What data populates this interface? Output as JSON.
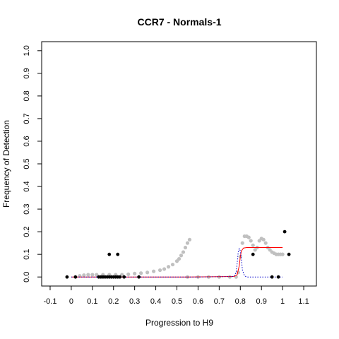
{
  "chart_data": {
    "type": "scatter",
    "title": "CCR7 - Normals-1",
    "xlabel": "Progression to H9",
    "ylabel": "Frequency of Detection",
    "xlim": [
      -0.14,
      1.16
    ],
    "ylim": [
      -0.04,
      1.04
    ],
    "x_ticks": [
      "-0.1",
      "0",
      "0.1",
      "0.2",
      "0.3",
      "0.4",
      "0.5",
      "0.6",
      "0.7",
      "0.8",
      "0.9",
      "1",
      "1.1"
    ],
    "x_tick_values": [
      -0.1,
      0,
      0.1,
      0.2,
      0.3,
      0.4,
      0.5,
      0.6,
      0.7,
      0.8,
      0.9,
      1.0,
      1.1
    ],
    "y_ticks": [
      "0.0",
      "0.1",
      "0.2",
      "0.3",
      "0.4",
      "0.5",
      "0.6",
      "0.7",
      "0.8",
      "0.9",
      "1.0"
    ],
    "y_tick_values": [
      0,
      0.1,
      0.2,
      0.3,
      0.4,
      0.5,
      0.6,
      0.7,
      0.8,
      0.9,
      1.0
    ],
    "grid": false,
    "colors": {
      "points": "#000000",
      "smooth_grey": "#c0c0c0",
      "fit_red": "#ff0000",
      "fit_blue": "#0000cc"
    },
    "series": [
      {
        "kind": "points",
        "points": [
          [
            -0.02,
            0
          ],
          [
            0.02,
            0
          ],
          [
            0.13,
            0
          ],
          [
            0.14,
            0
          ],
          [
            0.15,
            0
          ],
          [
            0.16,
            0
          ],
          [
            0.17,
            0
          ],
          [
            0.18,
            0
          ],
          [
            0.19,
            0
          ],
          [
            0.2,
            0
          ],
          [
            0.21,
            0
          ],
          [
            0.22,
            0
          ],
          [
            0.23,
            0
          ],
          [
            0.25,
            0
          ],
          [
            0.32,
            0
          ],
          [
            0.95,
            0
          ],
          [
            0.98,
            0
          ],
          [
            0.18,
            0.1
          ],
          [
            0.22,
            0.1
          ],
          [
            0.86,
            0.1
          ],
          [
            1.03,
            0.1
          ],
          [
            1.01,
            0.2
          ]
        ]
      },
      {
        "kind": "smooth",
        "points": [
          [
            0.04,
            0.005
          ],
          [
            0.06,
            0.008
          ],
          [
            0.08,
            0.01
          ],
          [
            0.1,
            0.01
          ],
          [
            0.12,
            0.01
          ],
          [
            0.15,
            0.01
          ],
          [
            0.18,
            0.01
          ],
          [
            0.21,
            0.01
          ],
          [
            0.24,
            0.01
          ],
          [
            0.27,
            0.012
          ],
          [
            0.3,
            0.015
          ],
          [
            0.33,
            0.017
          ],
          [
            0.36,
            0.02
          ],
          [
            0.39,
            0.025
          ],
          [
            0.42,
            0.03
          ],
          [
            0.44,
            0.035
          ],
          [
            0.46,
            0.045
          ],
          [
            0.48,
            0.055
          ],
          [
            0.5,
            0.07
          ],
          [
            0.51,
            0.08
          ],
          [
            0.52,
            0.095
          ],
          [
            0.53,
            0.11
          ],
          [
            0.54,
            0.13
          ],
          [
            0.55,
            0.15
          ],
          [
            0.56,
            0.165
          ],
          [
            0.55,
            0.0
          ],
          [
            0.6,
            0.0
          ],
          [
            0.65,
            0.0
          ],
          [
            0.7,
            0.0
          ],
          [
            0.75,
            0.0
          ],
          [
            0.78,
            0.0
          ],
          [
            0.79,
            0.02
          ],
          [
            0.8,
            0.09
          ],
          [
            0.81,
            0.15
          ],
          [
            0.82,
            0.18
          ],
          [
            0.83,
            0.18
          ],
          [
            0.84,
            0.175
          ],
          [
            0.85,
            0.16
          ],
          [
            0.86,
            0.14
          ],
          [
            0.87,
            0.12
          ],
          [
            0.88,
            0.13
          ],
          [
            0.89,
            0.16
          ],
          [
            0.9,
            0.17
          ],
          [
            0.91,
            0.165
          ],
          [
            0.92,
            0.15
          ],
          [
            0.93,
            0.13
          ],
          [
            0.94,
            0.12
          ],
          [
            0.95,
            0.11
          ],
          [
            0.96,
            0.105
          ],
          [
            0.97,
            0.1
          ],
          [
            0.98,
            0.1
          ],
          [
            0.99,
            0.1
          ],
          [
            1.0,
            0.1
          ]
        ]
      },
      {
        "kind": "fit",
        "style": "solid",
        "points": [
          [
            0.0,
            0.0
          ],
          [
            0.3,
            0.0
          ],
          [
            0.55,
            0.0
          ],
          [
            0.77,
            0.002
          ],
          [
            0.785,
            0.01
          ],
          [
            0.795,
            0.05
          ],
          [
            0.8,
            0.09
          ],
          [
            0.805,
            0.115
          ],
          [
            0.815,
            0.128
          ],
          [
            0.83,
            0.13
          ],
          [
            1.0,
            0.13
          ]
        ]
      },
      {
        "kind": "fit",
        "style": "dotted",
        "points": [
          [
            0.0,
            0.0
          ],
          [
            0.6,
            0.0
          ],
          [
            0.77,
            0.002
          ],
          [
            0.78,
            0.02
          ],
          [
            0.785,
            0.06
          ],
          [
            0.79,
            0.11
          ],
          [
            0.795,
            0.125
          ],
          [
            0.8,
            0.115
          ],
          [
            0.805,
            0.08
          ],
          [
            0.81,
            0.03
          ],
          [
            0.82,
            0.005
          ],
          [
            0.83,
            0.0
          ],
          [
            1.0,
            0.0
          ]
        ]
      }
    ]
  }
}
